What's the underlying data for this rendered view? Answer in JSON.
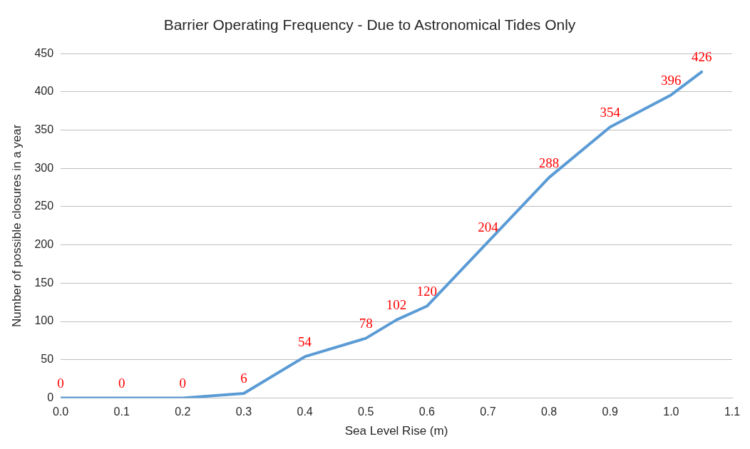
{
  "chart_data": {
    "type": "line",
    "title": "Barrier Operating Frequency - Due to Astronomical Tides Only",
    "xlabel": "Sea Level Rise (m)",
    "ylabel": "Number of possible closures in a year",
    "x": [
      0,
      0.1,
      0.2,
      0.3,
      0.4,
      0.5,
      0.55,
      0.6,
      0.7,
      0.8,
      0.9,
      1.0,
      1.05
    ],
    "series": [
      {
        "color": "#5b9bd5",
        "values": [
          0,
          0,
          0,
          6,
          54,
          78,
          102,
          120,
          204,
          288,
          354,
          396,
          426
        ]
      }
    ],
    "xlim": [
      0,
      1.1
    ],
    "xticks": [
      {
        "value": 0,
        "label": "0.0"
      },
      0.1,
      0.2,
      0.3,
      0.4,
      0.5,
      0.6,
      0.7,
      0.8,
      0.9,
      {
        "value": 1,
        "label": "1.0"
      },
      1.1
    ],
    "ylim": [
      0,
      450
    ],
    "yticks": [
      0,
      50,
      100,
      150,
      200,
      250,
      300,
      350,
      400,
      450
    ],
    "grid": "y",
    "legend": false,
    "marker": "none",
    "line_style": "solid",
    "data_labels": true
  }
}
